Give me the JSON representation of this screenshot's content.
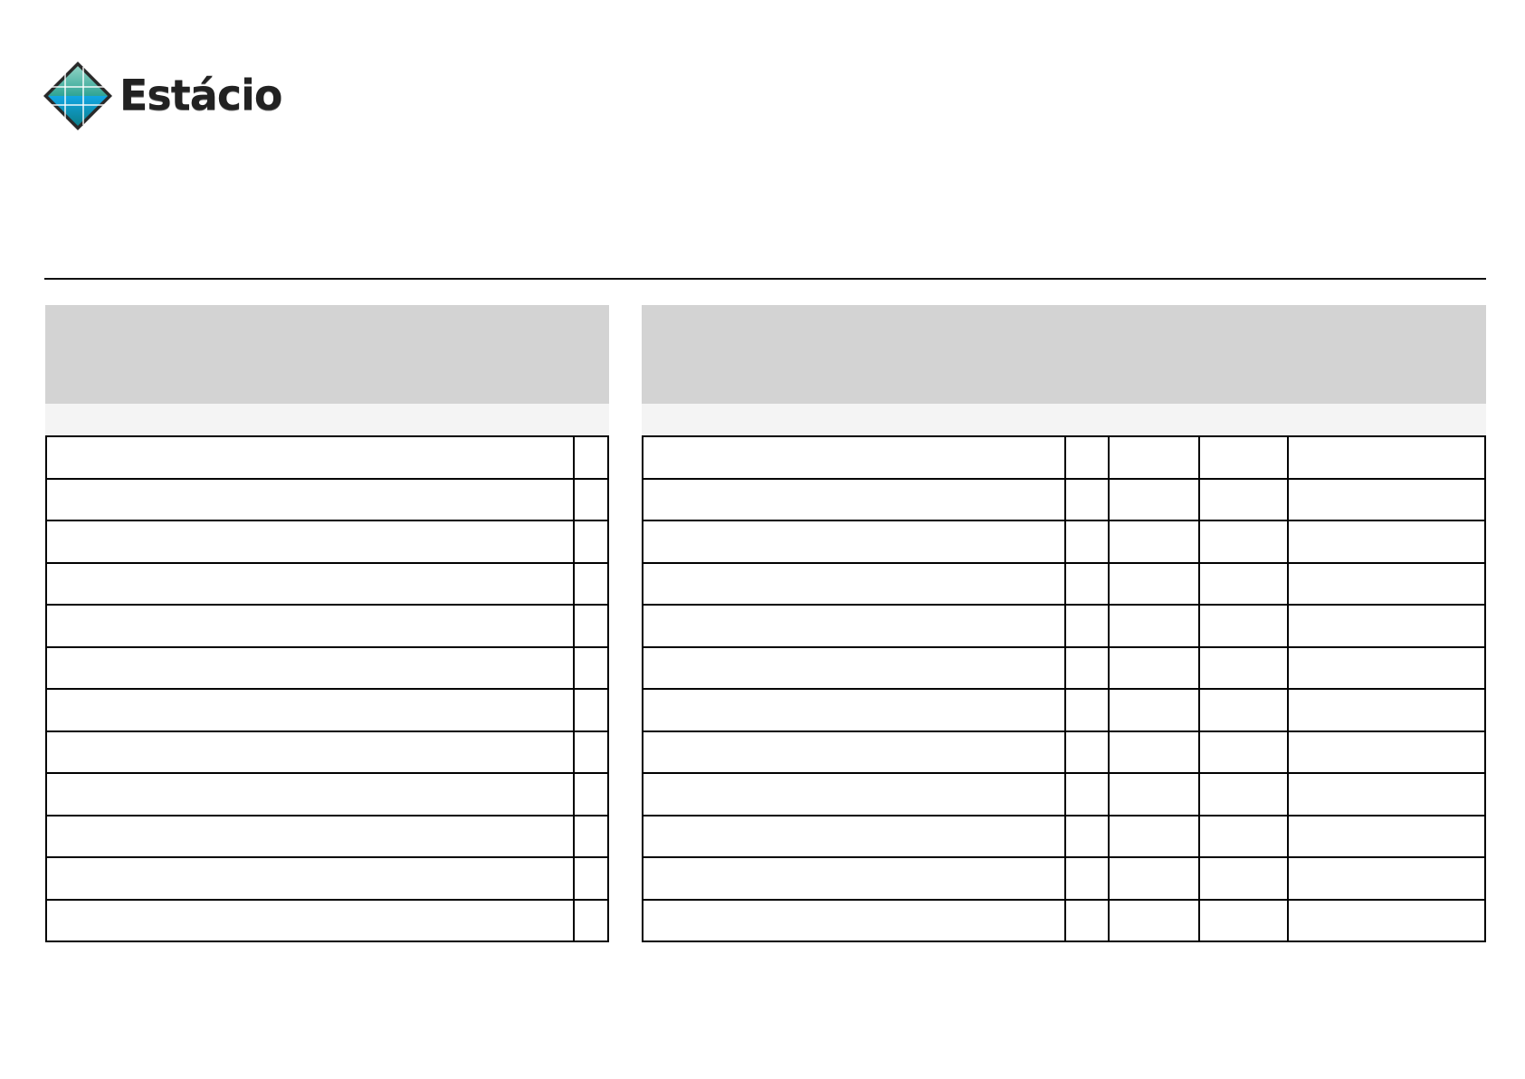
{
  "header": {
    "logo": {
      "text": "Estácio",
      "colors": {
        "teal": "#3aa89a",
        "blue": "#1aa7e0",
        "border": "#2a2a2a"
      }
    }
  },
  "left_panel": {
    "title": "",
    "subtitle": "",
    "columns": 2,
    "rows": [
      [
        "",
        ""
      ],
      [
        "",
        ""
      ],
      [
        "",
        ""
      ],
      [
        "",
        ""
      ],
      [
        "",
        ""
      ],
      [
        "",
        ""
      ],
      [
        "",
        ""
      ],
      [
        "",
        ""
      ],
      [
        "",
        ""
      ],
      [
        "",
        ""
      ],
      [
        "",
        ""
      ],
      [
        "",
        ""
      ]
    ]
  },
  "right_panel": {
    "title": "",
    "subtitle": "",
    "columns": 5,
    "rows": [
      [
        "",
        "",
        "",
        "",
        ""
      ],
      [
        "",
        "",
        "",
        "",
        ""
      ],
      [
        "",
        "",
        "",
        "",
        ""
      ],
      [
        "",
        "",
        "",
        "",
        ""
      ],
      [
        "",
        "",
        "",
        "",
        ""
      ],
      [
        "",
        "",
        "",
        "",
        ""
      ],
      [
        "",
        "",
        "",
        "",
        ""
      ],
      [
        "",
        "",
        "",
        "",
        ""
      ],
      [
        "",
        "",
        "",
        "",
        ""
      ],
      [
        "",
        "",
        "",
        "",
        ""
      ],
      [
        "",
        "",
        "",
        "",
        ""
      ],
      [
        "",
        "",
        "",
        "",
        ""
      ]
    ]
  },
  "colors": {
    "header_band": "#d3d3d3",
    "sub_band": "#f4f4f4",
    "grid": "#000000"
  }
}
